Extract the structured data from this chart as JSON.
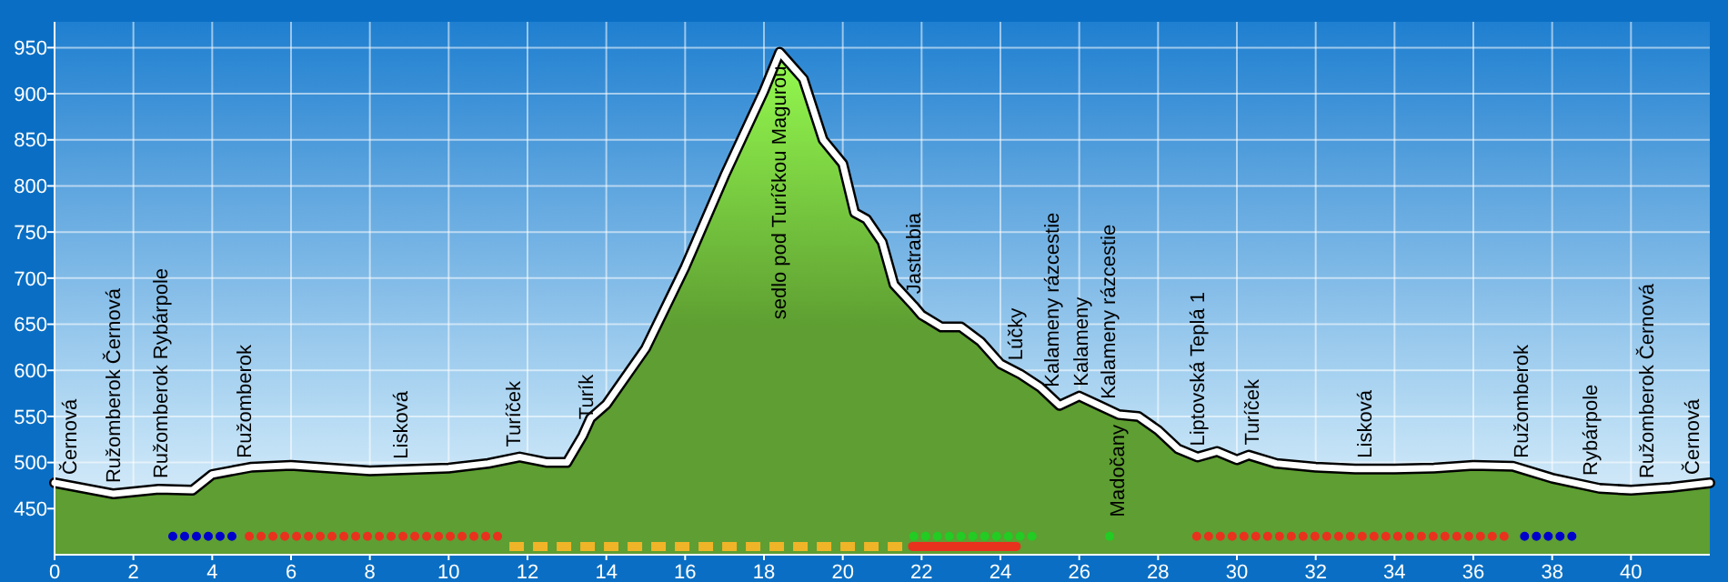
{
  "chart_data": {
    "type": "area",
    "xlim": [
      0,
      42
    ],
    "ylim": [
      400,
      978
    ],
    "xticks": [
      0,
      2,
      4,
      6,
      8,
      10,
      12,
      14,
      16,
      18,
      20,
      22,
      24,
      26,
      28,
      30,
      32,
      34,
      36,
      38,
      40
    ],
    "yticks": [
      450,
      500,
      550,
      600,
      650,
      700,
      750,
      800,
      850,
      900,
      950
    ],
    "grid": true,
    "series": [
      {
        "color": "#5e9e32",
        "x": [
          0,
          1.5,
          2.64,
          3.5,
          4,
          5,
          6,
          7,
          8,
          10,
          11,
          11.8,
          12.5,
          13,
          13.4,
          13.6,
          14,
          15,
          16,
          17,
          18,
          18.4,
          19,
          19.5,
          20,
          20.3,
          20.6,
          21,
          21.3,
          21.8,
          22,
          22.5,
          23,
          23.5,
          24,
          24.5,
          25,
          25.5,
          26,
          26.5,
          27,
          27.5,
          28,
          28.5,
          29,
          29.5,
          30,
          30.3,
          31,
          32,
          33,
          34,
          35,
          36,
          37,
          38,
          39.2,
          40,
          41,
          42
        ],
        "values": [
          478,
          466,
          471,
          470,
          487,
          495,
          497,
          494,
          491,
          494,
          499,
          506,
          500,
          500,
          529,
          548,
          563,
          624,
          712,
          811,
          903,
          945,
          916,
          850,
          824,
          771,
          764,
          739,
          693,
          670,
          660,
          647,
          647,
          631,
          607,
          596,
          582,
          562,
          572,
          562,
          552,
          550,
          535,
          515,
          506,
          512,
          503,
          508,
          499,
          495,
          493,
          493,
          494,
          497,
          496,
          483,
          472,
          470,
          473,
          478
        ]
      },
      {
        "type": "line",
        "color": "#0000cc",
        "line_style": "dotted",
        "x": [
          3.0,
          4.66
        ],
        "values": [
          420,
          420
        ]
      },
      {
        "type": "line",
        "color": "#e8321e",
        "line_style": "dotted",
        "x": [
          4.94,
          11.44
        ],
        "values": [
          420,
          420
        ]
      },
      {
        "type": "line",
        "color": "#f0b428",
        "line_style": "dashed",
        "x": [
          11.54,
          21.7
        ],
        "values": [
          409,
          409
        ]
      },
      {
        "type": "line",
        "color": "#22cc22",
        "line_style": "dotted",
        "x": [
          21.8,
          25.06
        ],
        "values": [
          420,
          420
        ]
      },
      {
        "type": "scatter",
        "color": "#22cc22",
        "marker": "circle",
        "x": [
          26.77
        ],
        "values": [
          420
        ]
      },
      {
        "type": "line",
        "color": "#e8321e",
        "line_style": "solid",
        "x": [
          21.77,
          24.4
        ],
        "values": [
          409,
          409
        ]
      },
      {
        "type": "line",
        "color": "#e8321e",
        "line_style": "dotted",
        "x": [
          28.98,
          37.06
        ],
        "values": [
          420,
          420
        ]
      },
      {
        "type": "line",
        "color": "#0000cc",
        "line_style": "dotted",
        "x": [
          37.3,
          38.67
        ],
        "values": [
          420,
          420
        ]
      }
    ],
    "annotations": [
      {
        "text": "Černová",
        "x": 0.37,
        "y": 475
      },
      {
        "text": "Ružomberok Černová",
        "x": 1.48,
        "y": 466
      },
      {
        "text": "Ružomberok Rybárpole",
        "x": 2.68,
        "y": 471
      },
      {
        "text": "Ružomberok",
        "x": 4.8,
        "y": 493
      },
      {
        "text": "Lisková",
        "x": 8.77,
        "y": 492
      },
      {
        "text": "Turíček",
        "x": 11.63,
        "y": 505
      },
      {
        "text": "Turík",
        "x": 13.47,
        "y": 535
      },
      {
        "text": "sedlo pod Turíčkou Magurou",
        "x": 18.37,
        "y": 942
      },
      {
        "text": "Jastrabia",
        "x": 21.78,
        "y": 671
      },
      {
        "text": "Lúčky",
        "x": 24.37,
        "y": 599
      },
      {
        "text": "Kalameny rázcestie",
        "x": 25.29,
        "y": 570
      },
      {
        "text": "Kalameny",
        "x": 26.03,
        "y": 571
      },
      {
        "text": "Kalameny rázcestie",
        "x": 26.72,
        "y": 557
      },
      {
        "text": "Madočany",
        "x": 26.95,
        "y": 553
      },
      {
        "text": "Liptovská Teplá 1",
        "x": 28.98,
        "y": 506
      },
      {
        "text": "Turíček",
        "x": 30.37,
        "y": 507
      },
      {
        "text": "Lisková",
        "x": 33.23,
        "y": 493
      },
      {
        "text": "Ružomberok",
        "x": 37.2,
        "y": 493
      },
      {
        "text": "Rybárpole",
        "x": 38.95,
        "y": 474
      },
      {
        "text": "Ružomberok Černová",
        "x": 40.38,
        "y": 471
      },
      {
        "text": "Černová",
        "x": 41.53,
        "y": 475
      }
    ]
  }
}
